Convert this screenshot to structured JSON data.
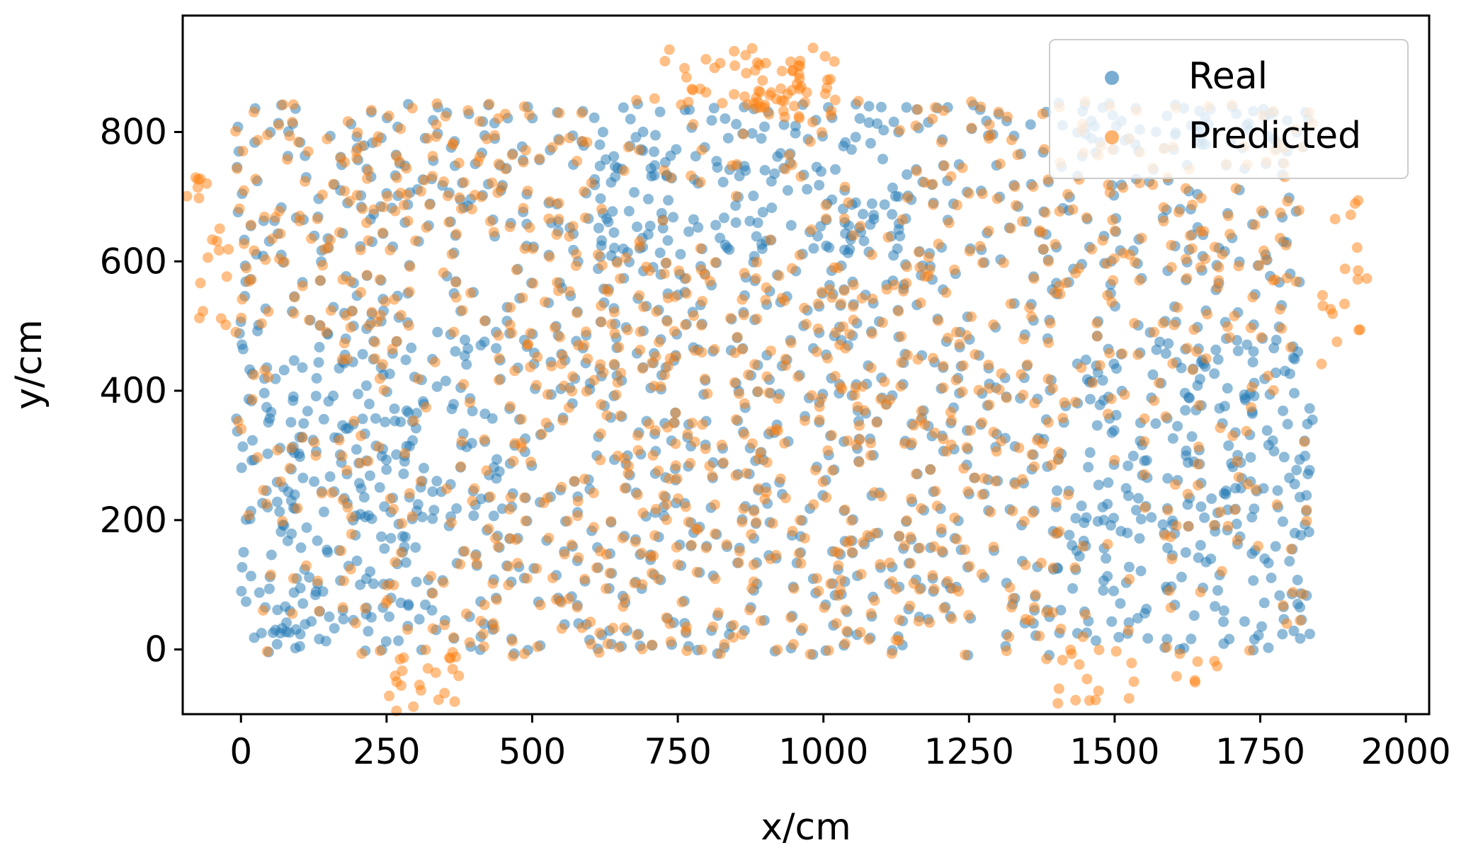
{
  "chart_data": {
    "type": "scatter",
    "title": "",
    "xlabel": "x/cm",
    "ylabel": "y/cm",
    "xlim": [
      -100,
      2040
    ],
    "ylim": [
      -100,
      980
    ],
    "xticks": [
      0,
      250,
      500,
      750,
      1000,
      1250,
      1500,
      1750,
      2000
    ],
    "yticks": [
      0,
      200,
      400,
      600,
      800
    ],
    "xtick_labels": [
      "0",
      "250",
      "500",
      "750",
      "1000",
      "1250",
      "1500",
      "1750",
      "2000"
    ],
    "ytick_labels": [
      "0",
      "200",
      "400",
      "600",
      "800"
    ],
    "grid": false,
    "legend": {
      "position": "top-right",
      "entries": [
        "Real",
        "Predicted"
      ]
    },
    "series": [
      {
        "name": "Real",
        "color": "#1f77b4",
        "opacity": 0.5,
        "generated": true,
        "description_points": [
          [
            0,
            800
          ],
          [
            1830,
            830
          ],
          [
            300,
            0
          ],
          [
            1800,
            200
          ],
          [
            900,
            830
          ]
        ]
      },
      {
        "name": "Predicted",
        "color": "#ff7f0e",
        "opacity": 0.5,
        "generated": true,
        "description_points": [
          [
            -100,
            760
          ],
          [
            1930,
            660
          ],
          [
            300,
            -90
          ],
          [
            920,
            920
          ],
          [
            1500,
            -80
          ]
        ]
      }
    ]
  }
}
